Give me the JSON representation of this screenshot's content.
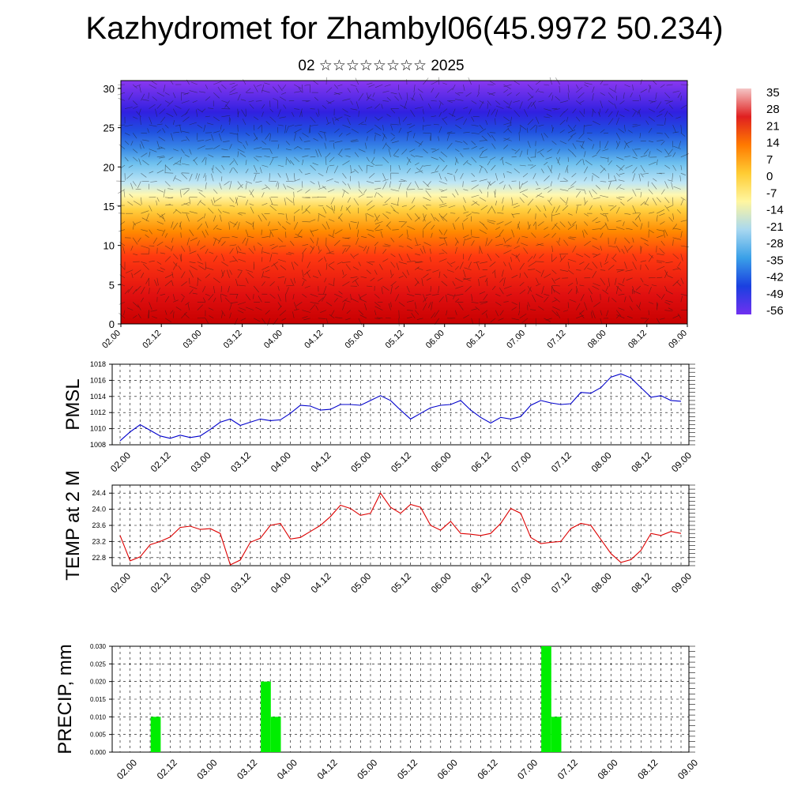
{
  "title": "Kazhydromet for Zhambyl06(45.9972 50.234)",
  "subtitle": "02 ☆☆☆☆☆☆☆☆ 2025",
  "time_labels": [
    "02.00",
    "02.12",
    "03.00",
    "03.12",
    "04.00",
    "04.12",
    "05.00",
    "05.12",
    "06.00",
    "06.12",
    "07.00",
    "07.12",
    "08.00",
    "08.12",
    "09.00"
  ],
  "colorbar": {
    "labels": [
      "35",
      "28",
      "21",
      "14",
      "7",
      "0",
      "-7",
      "-14",
      "-21",
      "-28",
      "-35",
      "-42",
      "-49",
      "-56"
    ],
    "colors": [
      "#f4c6c6",
      "#e02020",
      "#ff7a00",
      "#ffcc33",
      "#fff6a0",
      "#a8d8f0",
      "#3aa0e8",
      "#1a40e0",
      "#7030f0"
    ]
  },
  "chart_data": [
    {
      "type": "heatmap",
      "name": "vertical-section",
      "title": "",
      "xlabel": "",
      "ylabel": "",
      "ylim": [
        0,
        31
      ],
      "yticks": [
        "0",
        "5",
        "10",
        "15",
        "20",
        "25",
        "30"
      ],
      "x": [
        "02.00",
        "02.12",
        "03.00",
        "03.12",
        "04.00",
        "04.12",
        "05.00",
        "05.12",
        "06.00",
        "06.12",
        "07.00",
        "07.12",
        "08.00",
        "08.12",
        "09.00"
      ],
      "value_range": [
        -56,
        35
      ],
      "overlay": "wind barbs"
    },
    {
      "type": "line",
      "name": "pmsl",
      "title": "",
      "xlabel": "",
      "ylabel": "PMSL",
      "ylim": [
        1008,
        1018
      ],
      "yticks": [
        "1008",
        "1010",
        "1012",
        "1014",
        "1016",
        "1018"
      ],
      "color": "#0000cc",
      "x_range": [
        0,
        7
      ],
      "values": [
        1008.5,
        1009.6,
        1010.5,
        1009.8,
        1009.1,
        1008.8,
        1009.2,
        1008.9,
        1009.1,
        1009.9,
        1010.8,
        1011.2,
        1010.4,
        1010.8,
        1011.2,
        1011.0,
        1011.1,
        1011.9,
        1012.9,
        1012.8,
        1012.3,
        1012.4,
        1013.0,
        1013.0,
        1012.9,
        1013.5,
        1014.1,
        1013.5,
        1012.3,
        1011.2,
        1011.9,
        1012.6,
        1012.9,
        1013.0,
        1013.5,
        1012.3,
        1011.4,
        1010.7,
        1011.4,
        1011.2,
        1011.5,
        1012.9,
        1013.5,
        1013.2,
        1013.0,
        1013.1,
        1014.5,
        1014.4,
        1015.1,
        1016.4,
        1016.8,
        1016.3,
        1015.1,
        1013.9,
        1014.1,
        1013.5,
        1013.4
      ]
    },
    {
      "type": "line",
      "name": "temp-2m",
      "title": "",
      "xlabel": "",
      "ylabel": "TEMP at 2 M",
      "ylim": [
        22.6,
        24.6
      ],
      "yticks": [
        "22.8",
        "23.2",
        "23.6",
        "24.0",
        "24.4"
      ],
      "color": "#dd0000",
      "x_range": [
        0,
        7
      ],
      "values": [
        23.35,
        22.72,
        22.82,
        23.12,
        23.2,
        23.31,
        23.55,
        23.58,
        23.5,
        23.52,
        23.4,
        22.62,
        22.74,
        23.18,
        23.28,
        23.6,
        23.65,
        23.26,
        23.3,
        23.45,
        23.6,
        23.82,
        24.1,
        24.02,
        23.85,
        23.9,
        24.4,
        24.05,
        23.9,
        24.12,
        24.05,
        23.6,
        23.48,
        23.7,
        23.4,
        23.38,
        23.35,
        23.4,
        23.65,
        24.02,
        23.9,
        23.3,
        23.15,
        23.18,
        23.2,
        23.52,
        23.65,
        23.6,
        23.25,
        22.9,
        22.68,
        22.75,
        22.98,
        23.4,
        23.35,
        23.45,
        23.4
      ]
    },
    {
      "type": "bar",
      "name": "precip",
      "title": "",
      "xlabel": "",
      "ylabel": "PRECIP, mm",
      "ylim": [
        0,
        0.03
      ],
      "yticks": [
        "0.000",
        "0.005",
        "0.010",
        "0.015",
        "0.020",
        "0.025",
        "0.030"
      ],
      "color": "#00ee00",
      "bars": [
        {
          "x": "02.03",
          "value": 0.01
        },
        {
          "x": "03.12",
          "value": 0.02
        },
        {
          "x": "03.15",
          "value": 0.01
        },
        {
          "x": "07.00",
          "value": 0.03
        },
        {
          "x": "07.03",
          "value": 0.01
        }
      ]
    }
  ]
}
